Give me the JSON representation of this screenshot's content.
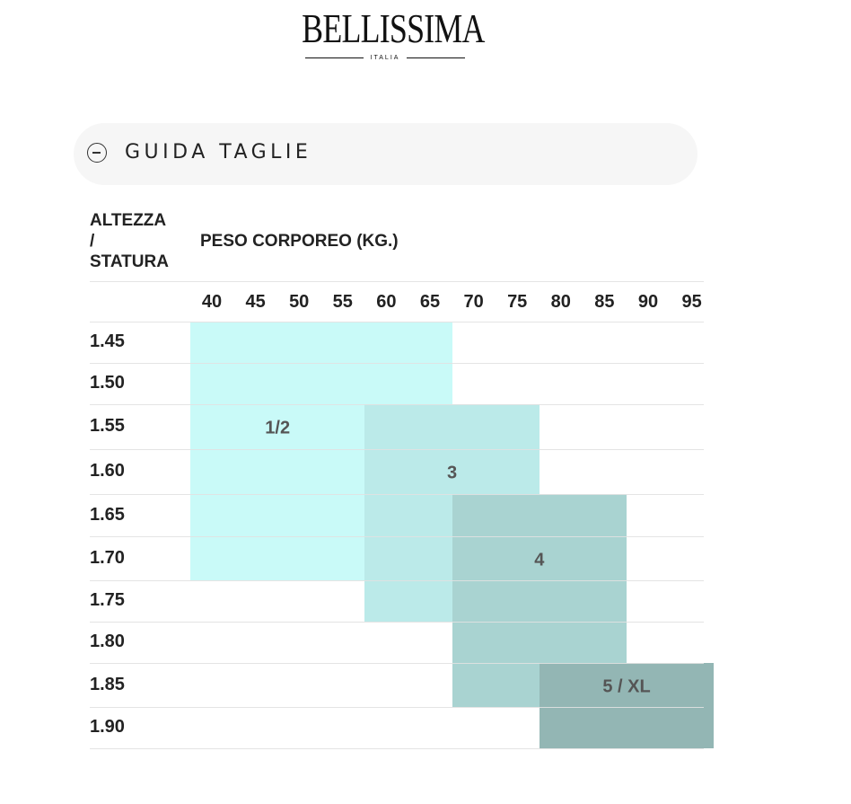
{
  "logo": {
    "brand": "BELLISSIMA",
    "subtitle": "ITALIA"
  },
  "accordion": {
    "title": "GUIDA TAGLIE",
    "icon": "minus-circle-icon"
  },
  "chart_data": {
    "type": "table",
    "row_header": [
      "ALTEZZA",
      "/",
      "STATURA"
    ],
    "column_header": "PESO CORPOREO (KG.)",
    "weights": [
      "40",
      "45",
      "50",
      "55",
      "60",
      "65",
      "70",
      "75",
      "80",
      "85",
      "90",
      "95"
    ],
    "heights": [
      "1.45",
      "1.50",
      "1.55",
      "1.60",
      "1.65",
      "1.70",
      "1.75",
      "1.80",
      "1.85",
      "1.90"
    ],
    "sizes": [
      {
        "label": "1/2",
        "color": "#c9faf8",
        "weight_range": [
          "40",
          "65"
        ],
        "height_range": [
          "1.45",
          "1.70"
        ]
      },
      {
        "label": "3",
        "color": "#bbeae9",
        "weight_range": [
          "60",
          "75"
        ],
        "height_range": [
          "1.55",
          "1.75"
        ]
      },
      {
        "label": "4",
        "color": "#a9d3d1",
        "weight_range": [
          "70",
          "85"
        ],
        "height_range": [
          "1.65",
          "1.85"
        ]
      },
      {
        "label": "5 / XL",
        "color": "#93b6b4",
        "weight_range": [
          "80",
          "95"
        ],
        "height_range": [
          "1.85",
          "1.90"
        ]
      }
    ]
  }
}
